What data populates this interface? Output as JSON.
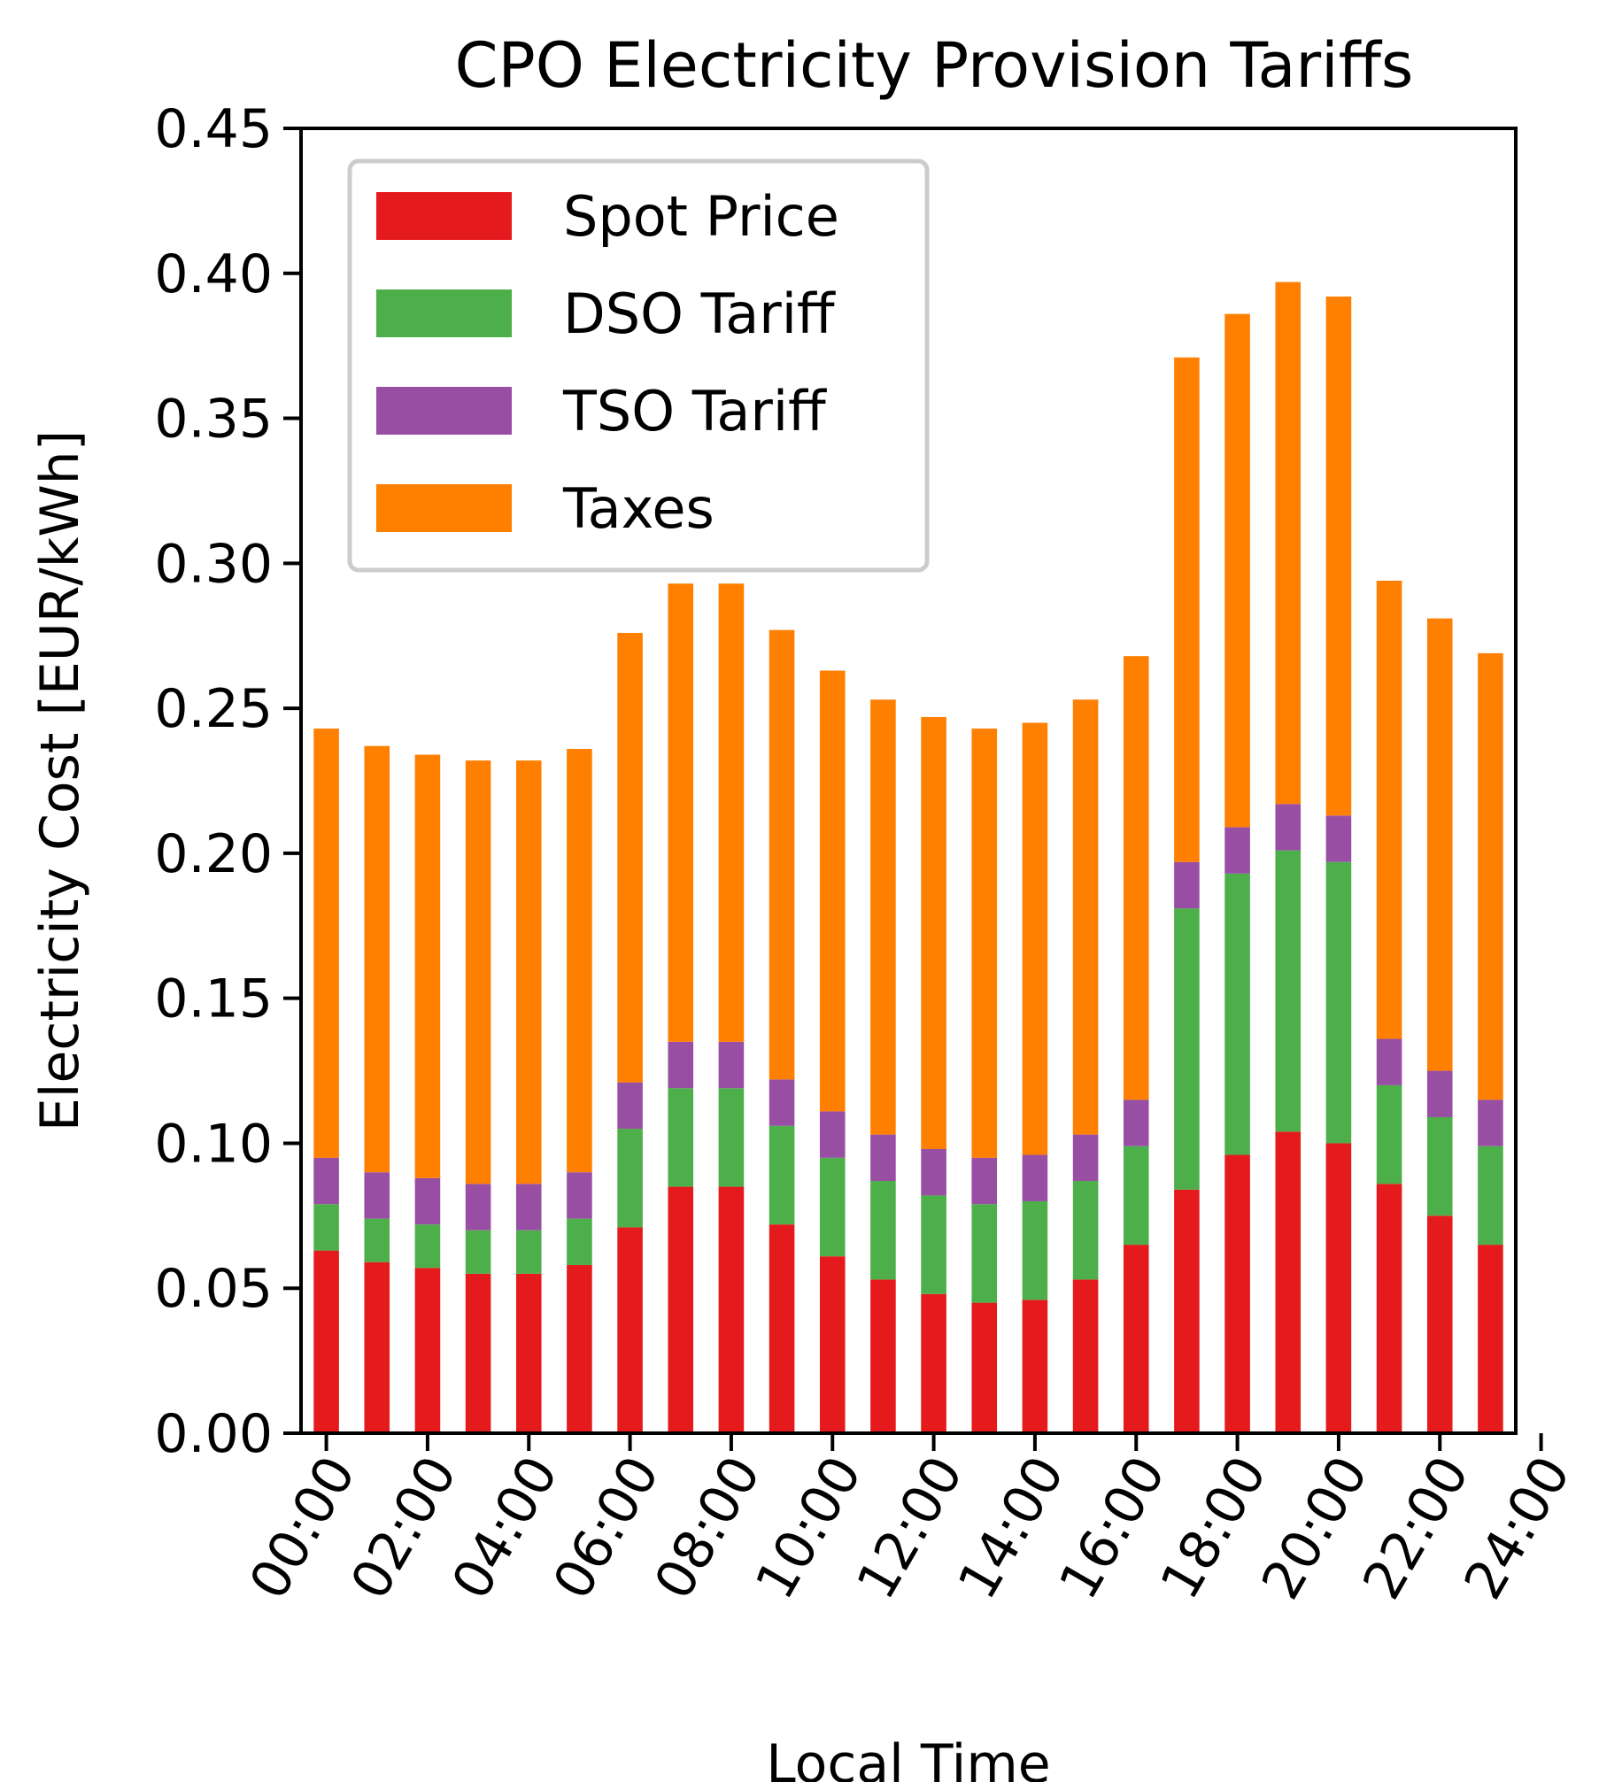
{
  "chart_data": {
    "type": "bar",
    "stacked": true,
    "title": "CPO Electricity Provision Tariffs",
    "xlabel": "Local Time",
    "ylabel": "Electricity Cost [EUR/kWh]",
    "ylim": [
      0,
      0.45
    ],
    "xlim": [
      -0.5,
      23.5
    ],
    "y_ticks": [
      "0.00",
      "0.05",
      "0.10",
      "0.15",
      "0.20",
      "0.25",
      "0.30",
      "0.35",
      "0.40",
      "0.45"
    ],
    "x_ticks": [
      "00:00",
      "02:00",
      "04:00",
      "06:00",
      "08:00",
      "10:00",
      "12:00",
      "14:00",
      "16:00",
      "18:00",
      "20:00",
      "22:00",
      "24:00"
    ],
    "legend_position": "top-left",
    "categories": [
      "00",
      "01",
      "02",
      "03",
      "04",
      "05",
      "06",
      "07",
      "08",
      "09",
      "10",
      "11",
      "12",
      "13",
      "14",
      "15",
      "16",
      "17",
      "18",
      "19",
      "20",
      "21",
      "22",
      "23"
    ],
    "series": [
      {
        "name": "Spot Price",
        "color": "#e41a1c",
        "values": [
          0.063,
          0.059,
          0.057,
          0.055,
          0.055,
          0.058,
          0.071,
          0.085,
          0.085,
          0.072,
          0.061,
          0.053,
          0.048,
          0.045,
          0.046,
          0.053,
          0.065,
          0.084,
          0.096,
          0.104,
          0.1,
          0.086,
          0.075,
          0.065
        ]
      },
      {
        "name": "DSO Tariff",
        "color": "#4daf4a",
        "values": [
          0.016,
          0.015,
          0.015,
          0.015,
          0.015,
          0.016,
          0.034,
          0.034,
          0.034,
          0.034,
          0.034,
          0.034,
          0.034,
          0.034,
          0.034,
          0.034,
          0.034,
          0.097,
          0.097,
          0.097,
          0.097,
          0.034,
          0.034,
          0.034
        ]
      },
      {
        "name": "TSO Tariff",
        "color": "#984ea3",
        "values": [
          0.016,
          0.016,
          0.016,
          0.016,
          0.016,
          0.016,
          0.016,
          0.016,
          0.016,
          0.016,
          0.016,
          0.016,
          0.016,
          0.016,
          0.016,
          0.016,
          0.016,
          0.016,
          0.016,
          0.016,
          0.016,
          0.016,
          0.016,
          0.016
        ]
      },
      {
        "name": "Taxes",
        "color": "#ff7f00",
        "values": [
          0.148,
          0.147,
          0.146,
          0.146,
          0.146,
          0.146,
          0.155,
          0.158,
          0.158,
          0.155,
          0.152,
          0.15,
          0.149,
          0.148,
          0.149,
          0.15,
          0.153,
          0.174,
          0.177,
          0.18,
          0.179,
          0.158,
          0.156,
          0.154
        ]
      }
    ]
  }
}
